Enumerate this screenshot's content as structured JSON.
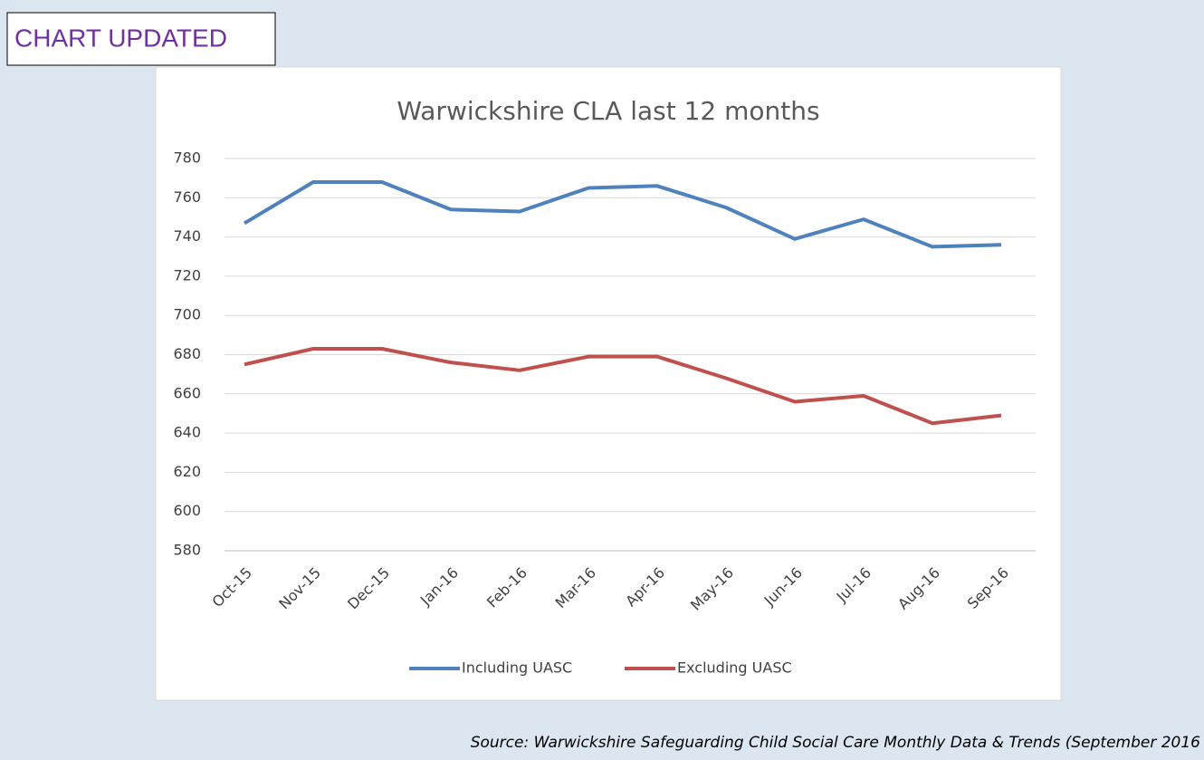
{
  "banner": "CHART UPDATED",
  "source": "Source: Warwickshire Safeguarding Child Social Care Monthly Data & Trends (September 2016",
  "chart_data": {
    "type": "line",
    "title": "Warwickshire CLA last 12 months",
    "categories": [
      "Oct-15",
      "Nov-15",
      "Dec-15",
      "Jan-16",
      "Feb-16",
      "Mar-16",
      "Apr-16",
      "May-16",
      "Jun-16",
      "Jul-16",
      "Aug-16",
      "Sep-16"
    ],
    "series": [
      {
        "name": "Including UASC",
        "color": "#4f81bd",
        "values": [
          747,
          768,
          768,
          754,
          753,
          765,
          766,
          755,
          739,
          749,
          735,
          736
        ]
      },
      {
        "name": "Excluding UASC",
        "color": "#c0504d",
        "values": [
          675,
          683,
          683,
          676,
          672,
          679,
          679,
          668,
          656,
          659,
          645,
          649
        ]
      }
    ],
    "ylim": [
      580,
      780
    ],
    "yticks": [
      580,
      600,
      620,
      640,
      660,
      680,
      700,
      720,
      740,
      760,
      780
    ],
    "grid": true,
    "legend": "bottom"
  }
}
